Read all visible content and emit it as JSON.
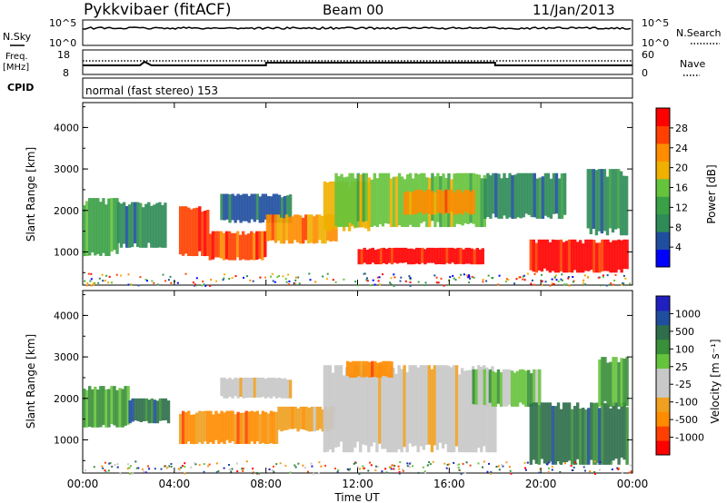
{
  "header": {
    "station": "Pykkvibaer (fitACF)",
    "beam": "Beam 00",
    "date": "11/Jan/2013"
  },
  "top_panels": {
    "nsky_label": "N.Sky",
    "nsky_ticks": [
      "10^5",
      "10^0"
    ],
    "nsearch_label": "N.Search",
    "nsearch_ticks": [
      "10^5",
      "10^0"
    ],
    "freq_label": "Freq.",
    "freq_unit": "[MHz]",
    "freq_ticks": [
      "18",
      "8"
    ],
    "nave_label": "Nave",
    "nave_ticks": [
      "60",
      "0"
    ],
    "cpid_label": "CPID",
    "cpid_text": "normal (fast stereo) 153"
  },
  "colors": {
    "power": [
      "#0000ff",
      "#1f4e9f",
      "#2e8b57",
      "#3aa046",
      "#66c33c",
      "#f0b000",
      "#ff8c00",
      "#ff4000",
      "#ff0000"
    ],
    "velocity": [
      "#ff0000",
      "#ff4000",
      "#ff8c00",
      "#f0a020",
      "#c8c8c8",
      "#c8c8c8",
      "#66c33c",
      "#3a8f3a",
      "#2e6e4a",
      "#1f4e9f",
      "#2020c0"
    ]
  },
  "chart_data": [
    {
      "type": "heatmap",
      "name": "power",
      "ylabel": "Slant Range [km]",
      "y_ticks": [
        "1000",
        "2000",
        "3000",
        "4000"
      ],
      "ylim": [
        200,
        4600
      ],
      "x_ticks": [
        "00:00",
        "04:00",
        "08:00",
        "12:00",
        "16:00",
        "20:00",
        "00:00"
      ],
      "xlim": [
        0,
        24
      ],
      "colorbar_label": "Power [dB]",
      "colorbar_ticks": [
        "4",
        "8",
        "12",
        "16",
        "20",
        "24",
        "28"
      ],
      "bands": [
        {
          "t0": 0.0,
          "t1": 1.5,
          "r0": 900,
          "r1": 2300,
          "level": 3
        },
        {
          "t0": 1.5,
          "t1": 3.6,
          "r0": 1100,
          "r1": 2200,
          "level": 2
        },
        {
          "t0": 4.2,
          "t1": 5.5,
          "r0": 900,
          "r1": 2100,
          "level": 7
        },
        {
          "t0": 5.5,
          "t1": 8.0,
          "r0": 800,
          "r1": 1500,
          "level": 7
        },
        {
          "t0": 6.0,
          "t1": 9.0,
          "r0": 1700,
          "r1": 2400,
          "level": 1
        },
        {
          "t0": 8.0,
          "t1": 11.0,
          "r0": 1200,
          "r1": 1900,
          "level": 6
        },
        {
          "t0": 10.5,
          "t1": 12.5,
          "r0": 1500,
          "r1": 2700,
          "level": 5
        },
        {
          "t0": 11.0,
          "t1": 17.5,
          "r0": 1600,
          "r1": 2900,
          "level": 4
        },
        {
          "t0": 12.0,
          "t1": 17.5,
          "r0": 700,
          "r1": 1100,
          "level": 8
        },
        {
          "t0": 14.0,
          "t1": 17.0,
          "r0": 1900,
          "r1": 2500,
          "level": 6
        },
        {
          "t0": 17.5,
          "t1": 21.0,
          "r0": 1800,
          "r1": 2900,
          "level": 2
        },
        {
          "t0": 19.5,
          "t1": 23.8,
          "r0": 500,
          "r1": 1300,
          "level": 8
        },
        {
          "t0": 22.0,
          "t1": 23.8,
          "r0": 1400,
          "r1": 3000,
          "level": 2
        }
      ]
    },
    {
      "type": "heatmap",
      "name": "velocity",
      "ylabel": "Slant Range [km]",
      "y_ticks": [
        "1000",
        "2000",
        "3000",
        "4000"
      ],
      "ylim": [
        200,
        4600
      ],
      "x_ticks": [
        "00:00",
        "04:00",
        "08:00",
        "12:00",
        "16:00",
        "20:00",
        "00:00"
      ],
      "xlim": [
        0,
        24
      ],
      "xlabel": "Time UT",
      "colorbar_label": "Velocity [m s⁻¹]",
      "colorbar_ticks": [
        "-1000",
        "-500",
        "-100",
        "-25",
        "25",
        "100",
        "500",
        "1000"
      ],
      "bands": [
        {
          "t0": 0.0,
          "t1": 2.0,
          "r0": 1300,
          "r1": 2300,
          "level": 7
        },
        {
          "t0": 2.0,
          "t1": 3.8,
          "r0": 1400,
          "r1": 2000,
          "level": 8
        },
        {
          "t0": 4.2,
          "t1": 8.5,
          "r0": 900,
          "r1": 1700,
          "level": 2
        },
        {
          "t0": 6.0,
          "t1": 9.0,
          "r0": 2000,
          "r1": 2500,
          "level": 4
        },
        {
          "t0": 8.5,
          "t1": 11.0,
          "r0": 1200,
          "r1": 1800,
          "level": 3
        },
        {
          "t0": 10.5,
          "t1": 18.0,
          "r0": 700,
          "r1": 2800,
          "level": 4
        },
        {
          "t0": 11.5,
          "t1": 13.5,
          "r0": 2500,
          "r1": 2900,
          "level": 2
        },
        {
          "t0": 17.0,
          "t1": 20.0,
          "r0": 1800,
          "r1": 2700,
          "level": 6
        },
        {
          "t0": 19.5,
          "t1": 23.8,
          "r0": 400,
          "r1": 1900,
          "level": 8
        },
        {
          "t0": 22.5,
          "t1": 23.8,
          "r0": 1800,
          "r1": 3000,
          "level": 7
        }
      ]
    }
  ]
}
